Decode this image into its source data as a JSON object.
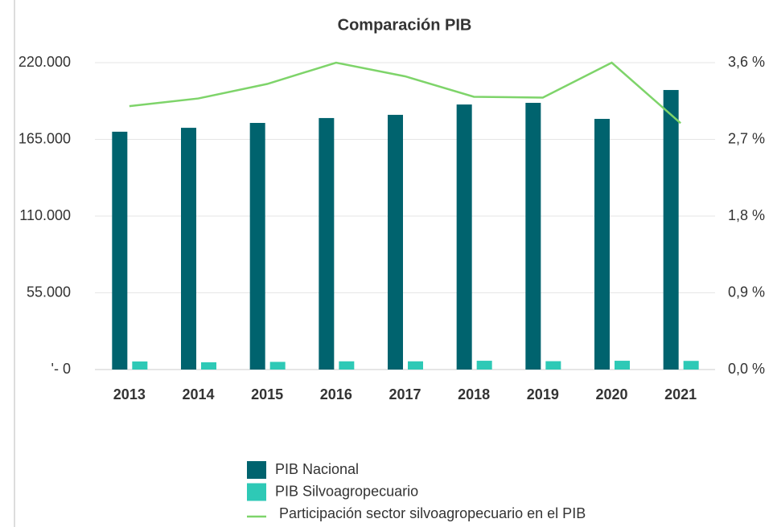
{
  "chart_data": {
    "type": "bar",
    "title": "Comparación PIB",
    "categories": [
      "2013",
      "2014",
      "2015",
      "2016",
      "2017",
      "2018",
      "2019",
      "2020",
      "2021"
    ],
    "series": [
      {
        "name": "PIB Nacional",
        "type": "bar",
        "color": "#00636e",
        "values": [
          170500,
          173300,
          176800,
          180300,
          182600,
          190000,
          191200,
          179700,
          200400
        ]
      },
      {
        "name": "PIB Silvoagropecuario",
        "type": "bar",
        "color": "#2ec9b6",
        "values": [
          5800,
          5200,
          5500,
          5900,
          5900,
          6300,
          6000,
          6300,
          6200
        ]
      },
      {
        "name": "Participación sector silvoagropecuario en el PIB",
        "type": "line",
        "axis": "y2",
        "color": "#7ed46a",
        "values": [
          3.09,
          3.18,
          3.35,
          3.6,
          3.44,
          3.2,
          3.19,
          3.6,
          2.89
        ]
      }
    ],
    "ylim": [
      0,
      220000
    ],
    "yticks": [
      {
        "value": 0,
        "label": "'- 0"
      },
      {
        "value": 55000,
        "label": "55.000"
      },
      {
        "value": 110000,
        "label": "110.000"
      },
      {
        "value": 165000,
        "label": "165.000"
      },
      {
        "value": 220000,
        "label": "220.000"
      }
    ],
    "y2lim": [
      0,
      3.6
    ],
    "y2ticks": [
      {
        "value": 0,
        "label": "0,0 %"
      },
      {
        "value": 0.9,
        "label": "0,9 %"
      },
      {
        "value": 1.8,
        "label": "1,8 %"
      },
      {
        "value": 2.7,
        "label": "2,7 %"
      },
      {
        "value": 3.6,
        "label": "3,6 %"
      }
    ],
    "grid": true,
    "legend": "bottom"
  }
}
